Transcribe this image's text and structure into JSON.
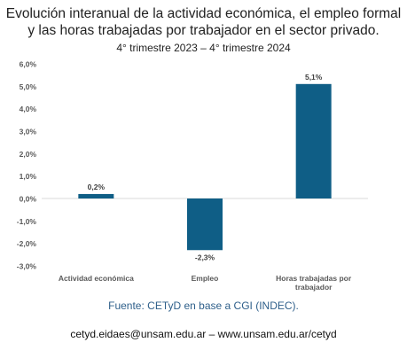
{
  "header": {
    "title_line1": "Evolución interanual de la actividad económica, el empleo formal",
    "title_line2": "y las horas trabajadas por trabajador en el sector privado.",
    "subtitle": "4° trimestre 2023 – 4° trimestre 2024"
  },
  "chart_data": {
    "type": "bar",
    "title": "Evolución interanual de la actividad económica, el empleo formal y las horas trabajadas por trabajador en el sector privado.",
    "subtitle": "4° trimestre 2023 – 4° trimestre 2024",
    "categories": [
      "Actividad económica",
      "Empleo",
      "Horas trabajadas por trabajador"
    ],
    "category_lines": [
      [
        "Actividad económica"
      ],
      [
        "Empleo"
      ],
      [
        "Horas trabajadas por",
        "trabajador"
      ]
    ],
    "values": [
      0.2,
      -2.3,
      5.1
    ],
    "value_labels": [
      "0,2%",
      "-2,3%",
      "5,1%"
    ],
    "yticks": [
      6,
      5,
      4,
      3,
      2,
      1,
      0,
      -1,
      -2,
      -3
    ],
    "ytick_labels": [
      "6,0%",
      "5,0%",
      "4,0%",
      "3,0%",
      "2,0%",
      "1,0%",
      "0,0%",
      "-1,0%",
      "-2,0%",
      "-3,0%"
    ],
    "ylim": [
      -3,
      6
    ],
    "xlabel": "",
    "ylabel": "",
    "grid": false,
    "legend": "none",
    "bar_color": "#0f5e86"
  },
  "footer": {
    "source": "Fuente: CETyD en base a CGI (INDEC).",
    "contact": "cetyd.eidaes@unsam.edu.ar – www.unsam.edu.ar/cetyd"
  }
}
